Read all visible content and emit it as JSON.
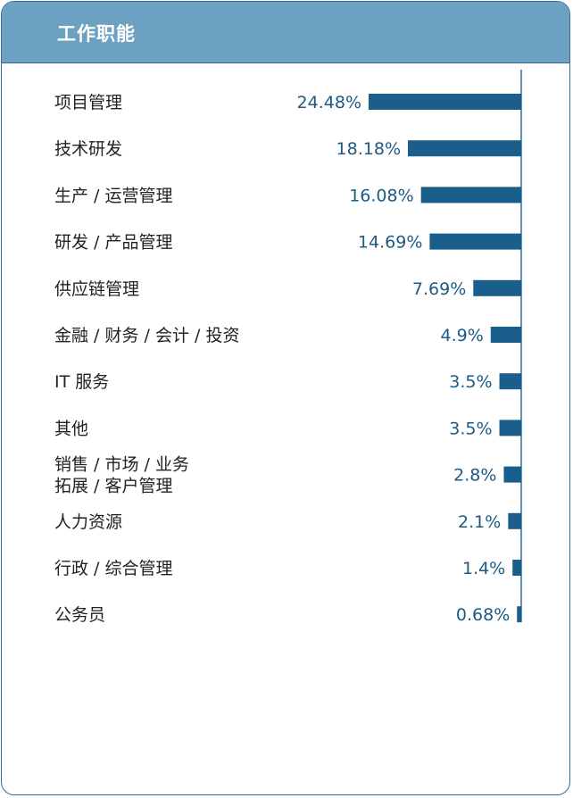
{
  "header": {
    "title": "工作职能"
  },
  "chart_data": {
    "type": "bar",
    "orientation": "horizontal",
    "title": "工作职能",
    "categories": [
      [
        "项目管理"
      ],
      [
        "技术研发"
      ],
      [
        "生产 / 运营管理"
      ],
      [
        "研发 / 产品管理"
      ],
      [
        "供应链管理"
      ],
      [
        "金融 / 财务 / 会计 / 投资"
      ],
      [
        "IT 服务"
      ],
      [
        "其他"
      ],
      [
        "销售 / 市场 / 业务",
        "拓展 / 客户管理"
      ],
      [
        "人力资源"
      ],
      [
        "行政 / 综合管理"
      ],
      [
        "公务员"
      ]
    ],
    "values": [
      24.48,
      18.18,
      16.08,
      14.69,
      7.69,
      4.9,
      3.5,
      3.5,
      2.8,
      2.1,
      1.4,
      0.68
    ],
    "value_labels": [
      "24.48%",
      "18.18%",
      "16.08%",
      "14.69%",
      "7.69%",
      "4.9%",
      "3.5%",
      "3.5%",
      "2.8%",
      "2.1%",
      "1.4%",
      "0.68%"
    ],
    "xlim": [
      0,
      24.48
    ],
    "bar_color": "#1a5f8b",
    "value_label_color": "#1d5a84",
    "axis_color": "#2f6f98"
  }
}
